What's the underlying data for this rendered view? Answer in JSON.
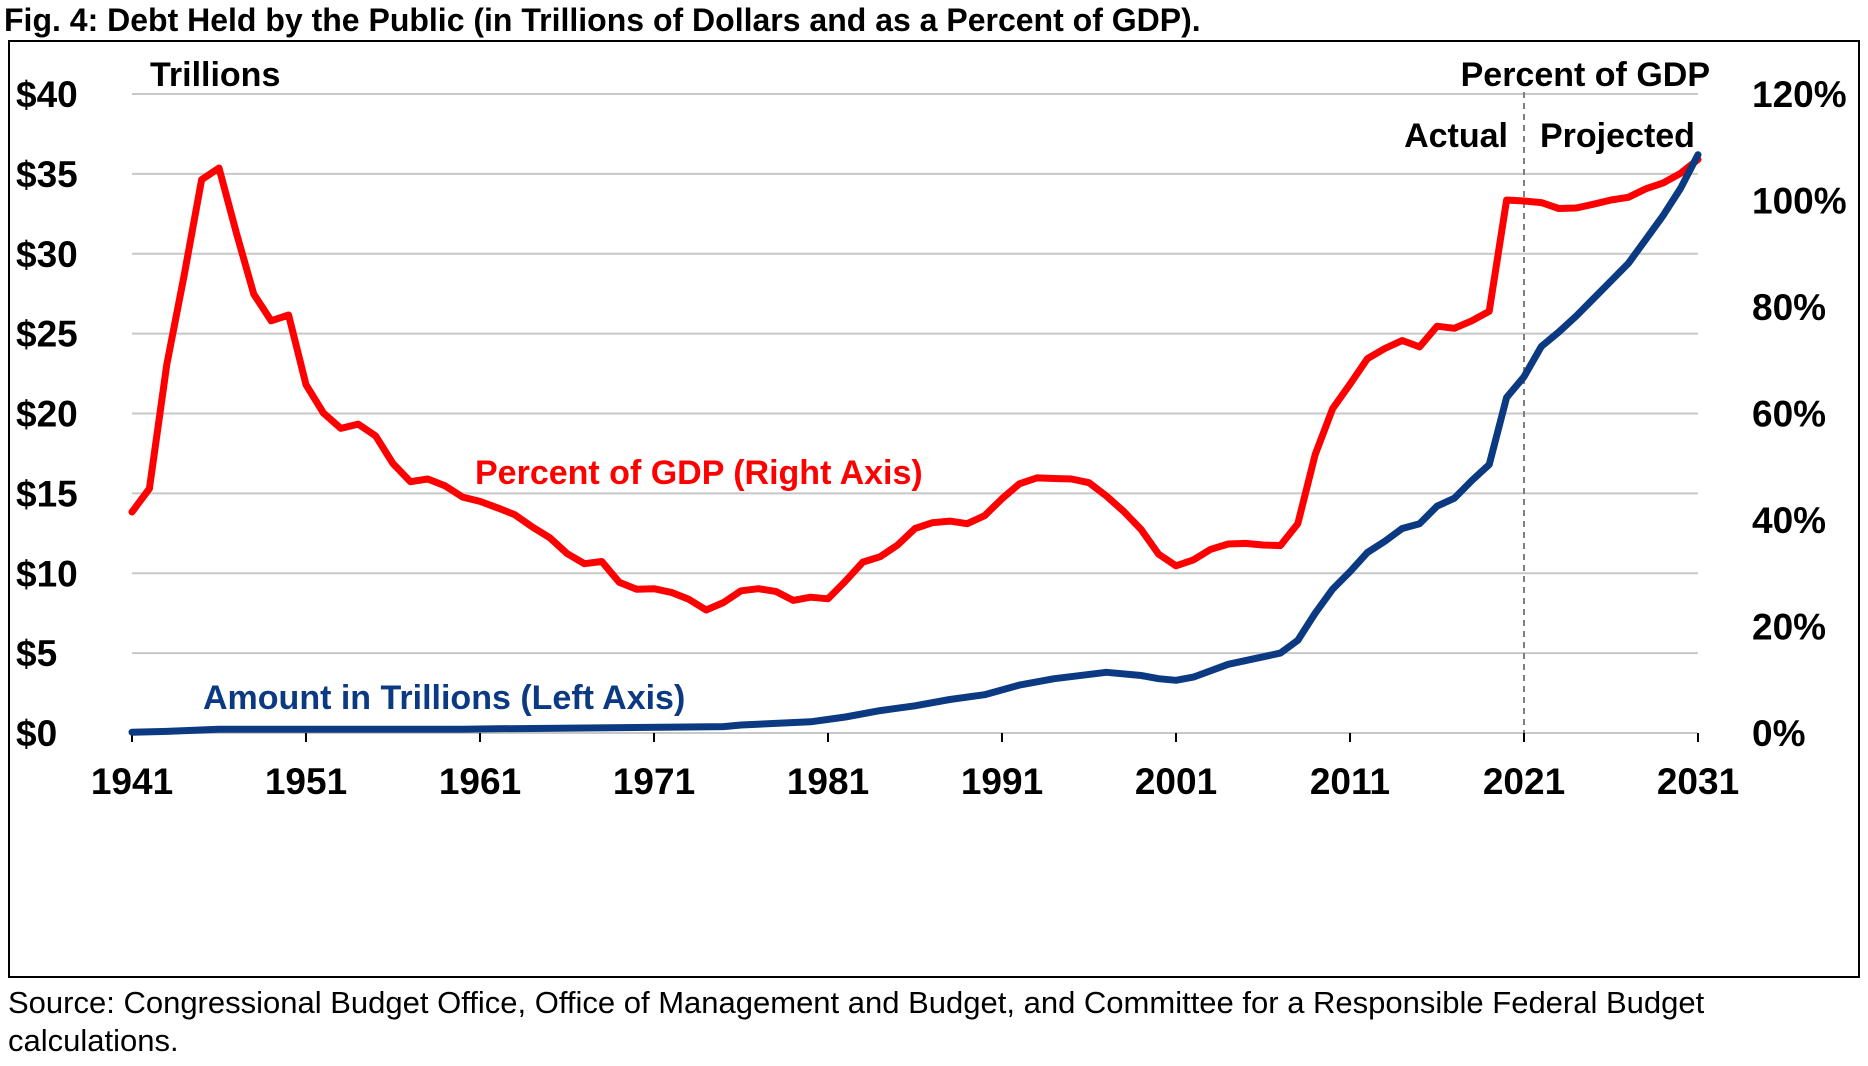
{
  "title": "Fig. 4: Debt Held by the Public (in Trillions of Dollars and as a Percent of GDP).",
  "source": "Source: Congressional Budget Office, Office of Management and Budget, and Committee for a Responsible Federal Budget calculations.",
  "chart_data": {
    "type": "line",
    "left_axis_label": "Trillions",
    "right_axis_label": "Percent of GDP",
    "left_ylim": [
      0,
      40
    ],
    "right_ylim": [
      0,
      120
    ],
    "xlim": [
      1941,
      2031
    ],
    "left_ticks": [
      "$0",
      "$5",
      "$10",
      "$15",
      "$20",
      "$25",
      "$30",
      "$35",
      "$40"
    ],
    "right_ticks": [
      "0%",
      "20%",
      "40%",
      "60%",
      "80%",
      "100%",
      "120%"
    ],
    "x_ticks": [
      "1941",
      "1951",
      "1961",
      "1971",
      "1981",
      "1991",
      "2001",
      "2011",
      "2021",
      "2031"
    ],
    "grid": "horizontal",
    "divider": {
      "x": 2021,
      "left_label": "Actual",
      "right_label": "Projected"
    },
    "series": [
      {
        "name": "Percent of GDP (Right Axis)",
        "axis": "right",
        "color": "#ff0000",
        "x": [
          1941,
          1942,
          1943,
          1944,
          1945,
          1946,
          1947,
          1948,
          1949,
          1950,
          1951,
          1952,
          1953,
          1954,
          1955,
          1956,
          1957,
          1958,
          1959,
          1960,
          1961,
          1962,
          1963,
          1964,
          1965,
          1966,
          1967,
          1968,
          1969,
          1970,
          1971,
          1972,
          1973,
          1974,
          1975,
          1976,
          1977,
          1978,
          1979,
          1980,
          1981,
          1982,
          1983,
          1984,
          1985,
          1986,
          1987,
          1988,
          1989,
          1990,
          1991,
          1992,
          1993,
          1994,
          1995,
          1996,
          1997,
          1998,
          1999,
          2000,
          2001,
          2002,
          2003,
          2004,
          2005,
          2006,
          2007,
          2008,
          2009,
          2010,
          2011,
          2012,
          2013,
          2014,
          2015,
          2016,
          2017,
          2018,
          2019,
          2020,
          2021,
          2022,
          2023,
          2024,
          2025,
          2026,
          2027,
          2028,
          2029,
          2030,
          2031
        ],
        "values": [
          41.5,
          45.9,
          69.2,
          86.0,
          103.9,
          106.1,
          93.9,
          82.4,
          77.4,
          78.5,
          65.4,
          60.1,
          57.2,
          58.0,
          55.8,
          50.6,
          47.2,
          47.7,
          46.4,
          44.3,
          43.5,
          42.3,
          41.0,
          38.7,
          36.7,
          33.7,
          31.8,
          32.2,
          28.3,
          27.0,
          27.1,
          26.4,
          25.1,
          23.1,
          24.5,
          26.7,
          27.1,
          26.6,
          24.9,
          25.5,
          25.2,
          28.5,
          32.1,
          33.1,
          35.3,
          38.4,
          39.5,
          39.8,
          39.3,
          40.8,
          44.0,
          46.8,
          47.9,
          47.8,
          47.7,
          47.0,
          44.5,
          41.6,
          38.2,
          33.6,
          31.4,
          32.5,
          34.5,
          35.5,
          35.6,
          35.3,
          35.2,
          39.3,
          52.3,
          60.9,
          65.5,
          70.3,
          72.2,
          73.7,
          72.5,
          76.4,
          76.0,
          77.4,
          79.2,
          100.1,
          99.9,
          99.6,
          98.5,
          98.6,
          99.3,
          100.1,
          100.6,
          102.2,
          103.3,
          105.1,
          107.7
        ]
      },
      {
        "name": "Amount in Trillions (Left Axis)",
        "axis": "left",
        "color": "#0b3a82",
        "x": [
          1941,
          1943,
          1946,
          1960,
          1962,
          1975,
          1976,
          1980,
          1982,
          1984,
          1986,
          1988,
          1990,
          1992,
          1994,
          1997,
          1999,
          2000,
          2001,
          2002,
          2004,
          2007,
          2008,
          2009,
          2010,
          2011,
          2012,
          2013,
          2014,
          2015,
          2016,
          2017,
          2018,
          2019,
          2020,
          2021,
          2022,
          2023,
          2024,
          2025,
          2026,
          2027,
          2028,
          2029,
          2030,
          2031
        ],
        "values": [
          0.05,
          0.1,
          0.24,
          0.24,
          0.26,
          0.4,
          0.5,
          0.7,
          1.0,
          1.4,
          1.7,
          2.1,
          2.4,
          3.0,
          3.4,
          3.8,
          3.6,
          3.4,
          3.3,
          3.5,
          4.3,
          5.0,
          5.8,
          7.5,
          9.0,
          10.1,
          11.3,
          12.0,
          12.8,
          13.1,
          14.2,
          14.7,
          15.8,
          16.8,
          21.0,
          22.3,
          24.2,
          25.1,
          26.1,
          27.2,
          28.3,
          29.4,
          30.9,
          32.4,
          34.1,
          36.2
        ]
      }
    ]
  }
}
